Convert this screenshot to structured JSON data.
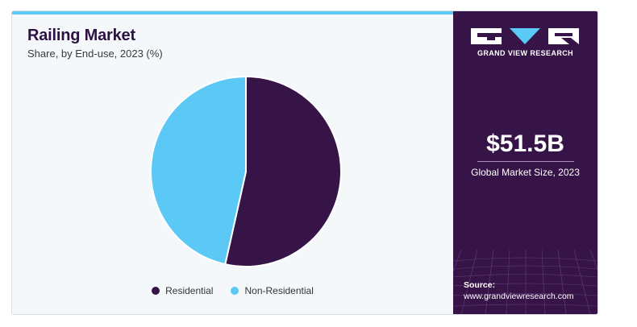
{
  "title": "Railing Market",
  "subtitle": "Share, by End-use, 2023 (%)",
  "brand": {
    "name": "GRAND VIEW RESEARCH"
  },
  "market": {
    "value": "$51.5B",
    "label": "Global Market Size, 2023"
  },
  "source": {
    "label": "Source:",
    "url": "www.grandviewresearch.com"
  },
  "colors": {
    "residential": "#371448",
    "non_residential": "#5bc8f5",
    "accent_bar": "#5bc8f5",
    "panel": "#371448"
  },
  "chart_data": {
    "type": "pie",
    "title": "Railing Market",
    "subtitle": "Share, by End-use, 2023 (%)",
    "categories": [
      "Residential",
      "Non-Residential"
    ],
    "values": [
      53.5,
      46.5
    ],
    "legend_position": "bottom"
  }
}
